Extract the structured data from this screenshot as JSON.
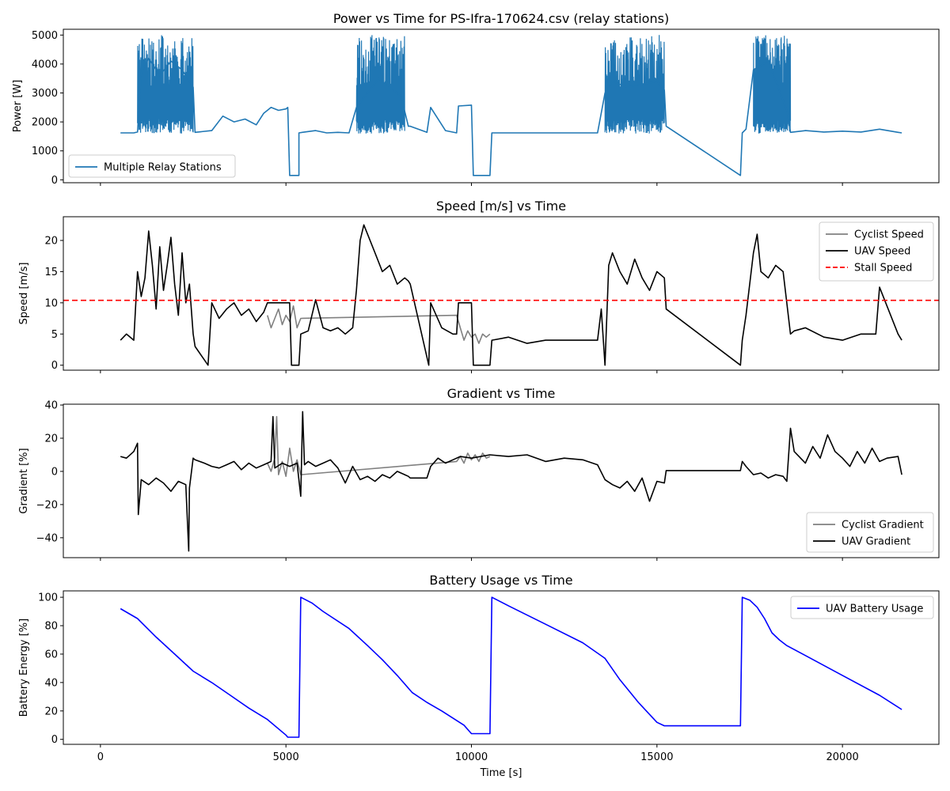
{
  "figure": {
    "background": "#ffffff"
  },
  "chart_data": [
    {
      "type": "line",
      "title": "Power vs Time for PS-Ifra-170624.csv (relay stations)",
      "xlabel": "",
      "ylabel": "Power [W]",
      "xlim": [
        -1000,
        22600
      ],
      "ylim": [
        -100,
        5200
      ],
      "yticks": [
        0,
        1000,
        2000,
        3000,
        4000,
        5000
      ],
      "xticks": [
        0,
        5000,
        10000,
        15000,
        20000
      ],
      "show_xticklabels": false,
      "grid": false,
      "legend": {
        "placement": "lower-left"
      },
      "series": [
        {
          "name": "Multiple Relay Stations",
          "color": "#1f77b4",
          "style": "solid",
          "noisy_ranges": [
            {
              "x": [
                1000,
                2500
              ],
              "low": 1600,
              "high": 5000
            },
            {
              "x": [
                6900,
                8200
              ],
              "low": 1600,
              "high": 5000
            },
            {
              "x": [
                13600,
                15200
              ],
              "low": 1600,
              "high": 5000
            },
            {
              "x": [
                17600,
                18600
              ],
              "low": 1600,
              "high": 5000
            }
          ],
          "x": [
            540,
            900,
            1000,
            1100,
            1300,
            1600,
            1900,
            2200,
            2500,
            2550,
            3000,
            3300,
            3600,
            3900,
            4200,
            4400,
            4600,
            4800,
            5000,
            5050,
            5100,
            5350,
            5350,
            5500,
            5800,
            6100,
            6400,
            6700,
            6900,
            7200,
            7500,
            7800,
            8100,
            8300,
            8350,
            8800,
            8900,
            9300,
            9600,
            9650,
            10000,
            10050,
            10500,
            10550,
            11000,
            11500,
            12000,
            12500,
            13000,
            13400,
            13600,
            13800,
            14200,
            14600,
            15000,
            15200,
            15250,
            17250,
            17300,
            17400,
            17600,
            18000,
            18500,
            18600,
            19000,
            19500,
            20000,
            20500,
            21000,
            21500,
            21600
          ],
          "y": [
            1620,
            1620,
            1650,
            3700,
            4200,
            3600,
            4100,
            3800,
            3200,
            1640,
            1700,
            2200,
            2000,
            2100,
            1900,
            2300,
            2500,
            2400,
            2450,
            2500,
            150,
            150,
            1620,
            1650,
            1700,
            1620,
            1640,
            1620,
            2500,
            3000,
            3500,
            3200,
            2900,
            1850,
            1850,
            1640,
            2500,
            1700,
            1620,
            2550,
            2580,
            150,
            150,
            1620,
            1620,
            1620,
            1620,
            1620,
            1620,
            1620,
            3000,
            3400,
            3200,
            3300,
            3400,
            3100,
            1850,
            150,
            1620,
            1750,
            3800,
            4100,
            2400,
            1640,
            1700,
            1650,
            1680,
            1650,
            1750,
            1640,
            1620
          ]
        }
      ]
    },
    {
      "type": "line",
      "title": "Speed [m/s] vs Time",
      "xlabel": "",
      "ylabel": "Speed [m/s]",
      "xlim": [
        -1000,
        22600
      ],
      "ylim": [
        -0.8,
        23.8
      ],
      "yticks": [
        0,
        5,
        10,
        15,
        20
      ],
      "xticks": [
        0,
        5000,
        10000,
        15000,
        20000
      ],
      "show_xticklabels": false,
      "grid": false,
      "legend": {
        "placement": "top-right"
      },
      "series": [
        {
          "name": "Cyclist Speed",
          "color": "#808080",
          "style": "solid",
          "x": [
            4500,
            4600,
            4700,
            4800,
            4900,
            5000,
            5100,
            5200,
            5300,
            5400,
            9600,
            9700,
            9800,
            9900,
            10000,
            10100,
            10200,
            10300,
            10400,
            10500
          ],
          "y": [
            8.0,
            6.0,
            7.5,
            9.0,
            6.5,
            8.0,
            7.0,
            9.5,
            6.0,
            7.5,
            8.0,
            6.0,
            4.0,
            5.5,
            4.5,
            5.0,
            3.5,
            5.0,
            4.5,
            5.0
          ]
        },
        {
          "name": "UAV Speed",
          "color": "#000000",
          "style": "solid",
          "x": [
            540,
            700,
            900,
            1000,
            1100,
            1200,
            1300,
            1400,
            1500,
            1600,
            1700,
            1800,
            1900,
            2000,
            2100,
            2200,
            2300,
            2400,
            2500,
            2550,
            2900,
            3000,
            3200,
            3400,
            3600,
            3800,
            4000,
            4200,
            4400,
            4500,
            5000,
            5100,
            5150,
            5350,
            5400,
            5600,
            5800,
            6000,
            6200,
            6400,
            6600,
            6800,
            6900,
            7000,
            7100,
            7200,
            7400,
            7600,
            7800,
            8000,
            8200,
            8300,
            8350,
            8850,
            8900,
            9200,
            9500,
            9600,
            9650,
            9800,
            10000,
            10050,
            10500,
            10550,
            11000,
            11500,
            12000,
            12500,
            13000,
            13400,
            13500,
            13600,
            13700,
            13800,
            14000,
            14200,
            14400,
            14600,
            14800,
            15000,
            15200,
            15250,
            17250,
            17300,
            17400,
            17600,
            17700,
            17800,
            18000,
            18200,
            18400,
            18600,
            18700,
            19000,
            19500,
            20000,
            20500,
            20900,
            21000,
            21500,
            21600
          ],
          "y": [
            4.0,
            5.0,
            4.0,
            15.0,
            11.0,
            14.0,
            21.5,
            16.0,
            9.0,
            19.0,
            12.0,
            16.0,
            20.5,
            13.0,
            8.0,
            18.0,
            10.0,
            13.0,
            5.0,
            3.0,
            0.0,
            10.0,
            7.5,
            9.0,
            10.0,
            8.0,
            9.0,
            7.0,
            8.5,
            10.0,
            10.0,
            10.0,
            0.0,
            0.0,
            5.0,
            5.5,
            10.5,
            6.0,
            5.5,
            6.0,
            5.0,
            6.0,
            12.0,
            20.0,
            22.5,
            21.0,
            18.0,
            15.0,
            16.0,
            13.0,
            14.0,
            13.5,
            13.0,
            0.0,
            10.0,
            6.0,
            5.0,
            5.0,
            10.0,
            10.0,
            10.0,
            0.0,
            0.0,
            4.0,
            4.5,
            3.5,
            4.0,
            4.0,
            4.0,
            4.0,
            9.0,
            0.0,
            16.0,
            18.0,
            15.0,
            13.0,
            17.0,
            14.0,
            12.0,
            15.0,
            14.0,
            9.0,
            0.0,
            4.0,
            8.0,
            18.0,
            21.0,
            15.0,
            14.0,
            16.0,
            15.0,
            5.0,
            5.5,
            6.0,
            4.5,
            4.0,
            5.0,
            5.0,
            12.5,
            5.0,
            4.0
          ]
        },
        {
          "name": "Stall Speed",
          "color": "#ff0000",
          "style": "dashed",
          "hline": 10.4
        }
      ]
    },
    {
      "type": "line",
      "title": "Gradient vs Time",
      "xlabel": "",
      "ylabel": "Gradient [%]",
      "xlim": [
        -1000,
        22600
      ],
      "ylim": [
        -52,
        40.5
      ],
      "yticks": [
        -40,
        -20,
        0,
        20,
        40
      ],
      "xticks": [
        0,
        5000,
        10000,
        15000,
        20000
      ],
      "show_xticklabels": false,
      "grid": false,
      "legend": {
        "placement": "lower-right"
      },
      "series": [
        {
          "name": "Cyclist Gradient",
          "color": "#808080",
          "style": "solid",
          "x": [
            4500,
            4600,
            4700,
            4750,
            4800,
            4900,
            5000,
            5100,
            5200,
            5300,
            5400,
            9600,
            9700,
            9800,
            9900,
            10000,
            10100,
            10200,
            10300,
            10400,
            10500
          ],
          "y": [
            5,
            0,
            8,
            33,
            -2,
            6,
            -3,
            14,
            0,
            7,
            -2,
            6,
            9,
            5,
            11,
            7,
            10,
            6,
            11,
            8,
            9
          ]
        },
        {
          "name": "UAV Gradient",
          "color": "#000000",
          "style": "solid",
          "x": [
            540,
            700,
            900,
            1000,
            1020,
            1100,
            1300,
            1500,
            1700,
            1900,
            2100,
            2300,
            2380,
            2400,
            2500,
            2550,
            2800,
            3000,
            3200,
            3400,
            3600,
            3800,
            4000,
            4200,
            4400,
            4600,
            4650,
            4700,
            4900,
            5100,
            5300,
            5400,
            5450,
            5500,
            5600,
            5800,
            6000,
            6200,
            6400,
            6600,
            6800,
            7000,
            7200,
            7400,
            7600,
            7800,
            8000,
            8200,
            8300,
            8350,
            8800,
            8900,
            9100,
            9300,
            9500,
            9700,
            10000,
            10500,
            11000,
            11500,
            12000,
            12500,
            13000,
            13400,
            13600,
            13800,
            14000,
            14200,
            14400,
            14600,
            14800,
            15000,
            15200,
            15250,
            17250,
            17300,
            17400,
            17600,
            17800,
            18000,
            18200,
            18400,
            18500,
            18600,
            18700,
            19000,
            19200,
            19400,
            19600,
            19800,
            20000,
            20200,
            20400,
            20600,
            20800,
            21000,
            21200,
            21500,
            21600
          ],
          "y": [
            9,
            8,
            12,
            17,
            -26,
            -5,
            -8,
            -4,
            -7,
            -12,
            -6,
            -8,
            -48,
            -10,
            8,
            7,
            5,
            3,
            2,
            4,
            6,
            1,
            5,
            2,
            4,
            6,
            33,
            2,
            5,
            3,
            5,
            -15,
            36,
            4,
            6,
            3,
            5,
            7,
            2,
            -7,
            3,
            -5,
            -3,
            -6,
            -2,
            -4,
            0,
            -2,
            -3,
            -4,
            -4,
            3,
            8,
            5,
            7,
            9,
            8,
            10,
            9,
            10,
            6,
            8,
            7,
            4,
            -5,
            -8,
            -10,
            -6,
            -12,
            -4,
            -18,
            -6,
            -7,
            0.5,
            0.5,
            6,
            3,
            -2,
            -1,
            -4,
            -2,
            -3,
            -6,
            26,
            12,
            5,
            15,
            8,
            22,
            12,
            8,
            3,
            12,
            5,
            14,
            6,
            8,
            9,
            -2
          ]
        }
      ]
    },
    {
      "type": "line",
      "title": "Battery Usage vs Time",
      "xlabel": "Time [s]",
      "ylabel": "Battery Energy [%]",
      "xlim": [
        -1000,
        22600
      ],
      "ylim": [
        -3.5,
        104.5
      ],
      "yticks": [
        0,
        20,
        40,
        60,
        80,
        100
      ],
      "xticks": [
        0,
        5000,
        10000,
        15000,
        20000
      ],
      "show_xticklabels": true,
      "grid": false,
      "legend": {
        "placement": "top-right"
      },
      "series": [
        {
          "name": "UAV Battery Usage",
          "color": "#0000ff",
          "style": "solid",
          "x": [
            540,
            1000,
            1500,
            2000,
            2500,
            3000,
            3500,
            4000,
            4500,
            5000,
            5050,
            5350,
            5400,
            5700,
            6000,
            6700,
            7200,
            7600,
            8000,
            8400,
            8800,
            9200,
            9800,
            10000,
            10500,
            10550,
            11000,
            12000,
            13000,
            13600,
            14000,
            14500,
            15000,
            15200,
            15250,
            17250,
            17300,
            17500,
            17700,
            17900,
            18100,
            18300,
            18500,
            19000,
            20000,
            21000,
            21600
          ],
          "y": [
            92,
            85,
            72,
            60,
            48,
            40,
            31,
            22,
            14,
            3,
            1.5,
            1.5,
            100,
            96,
            90,
            78,
            66,
            56,
            45,
            33,
            26,
            20,
            10,
            4,
            4,
            100,
            94,
            81,
            68,
            57,
            42,
            26,
            12,
            9.5,
            9.5,
            9.5,
            100,
            98,
            93,
            85,
            75,
            70,
            66,
            59,
            45,
            31,
            21
          ]
        }
      ]
    }
  ]
}
